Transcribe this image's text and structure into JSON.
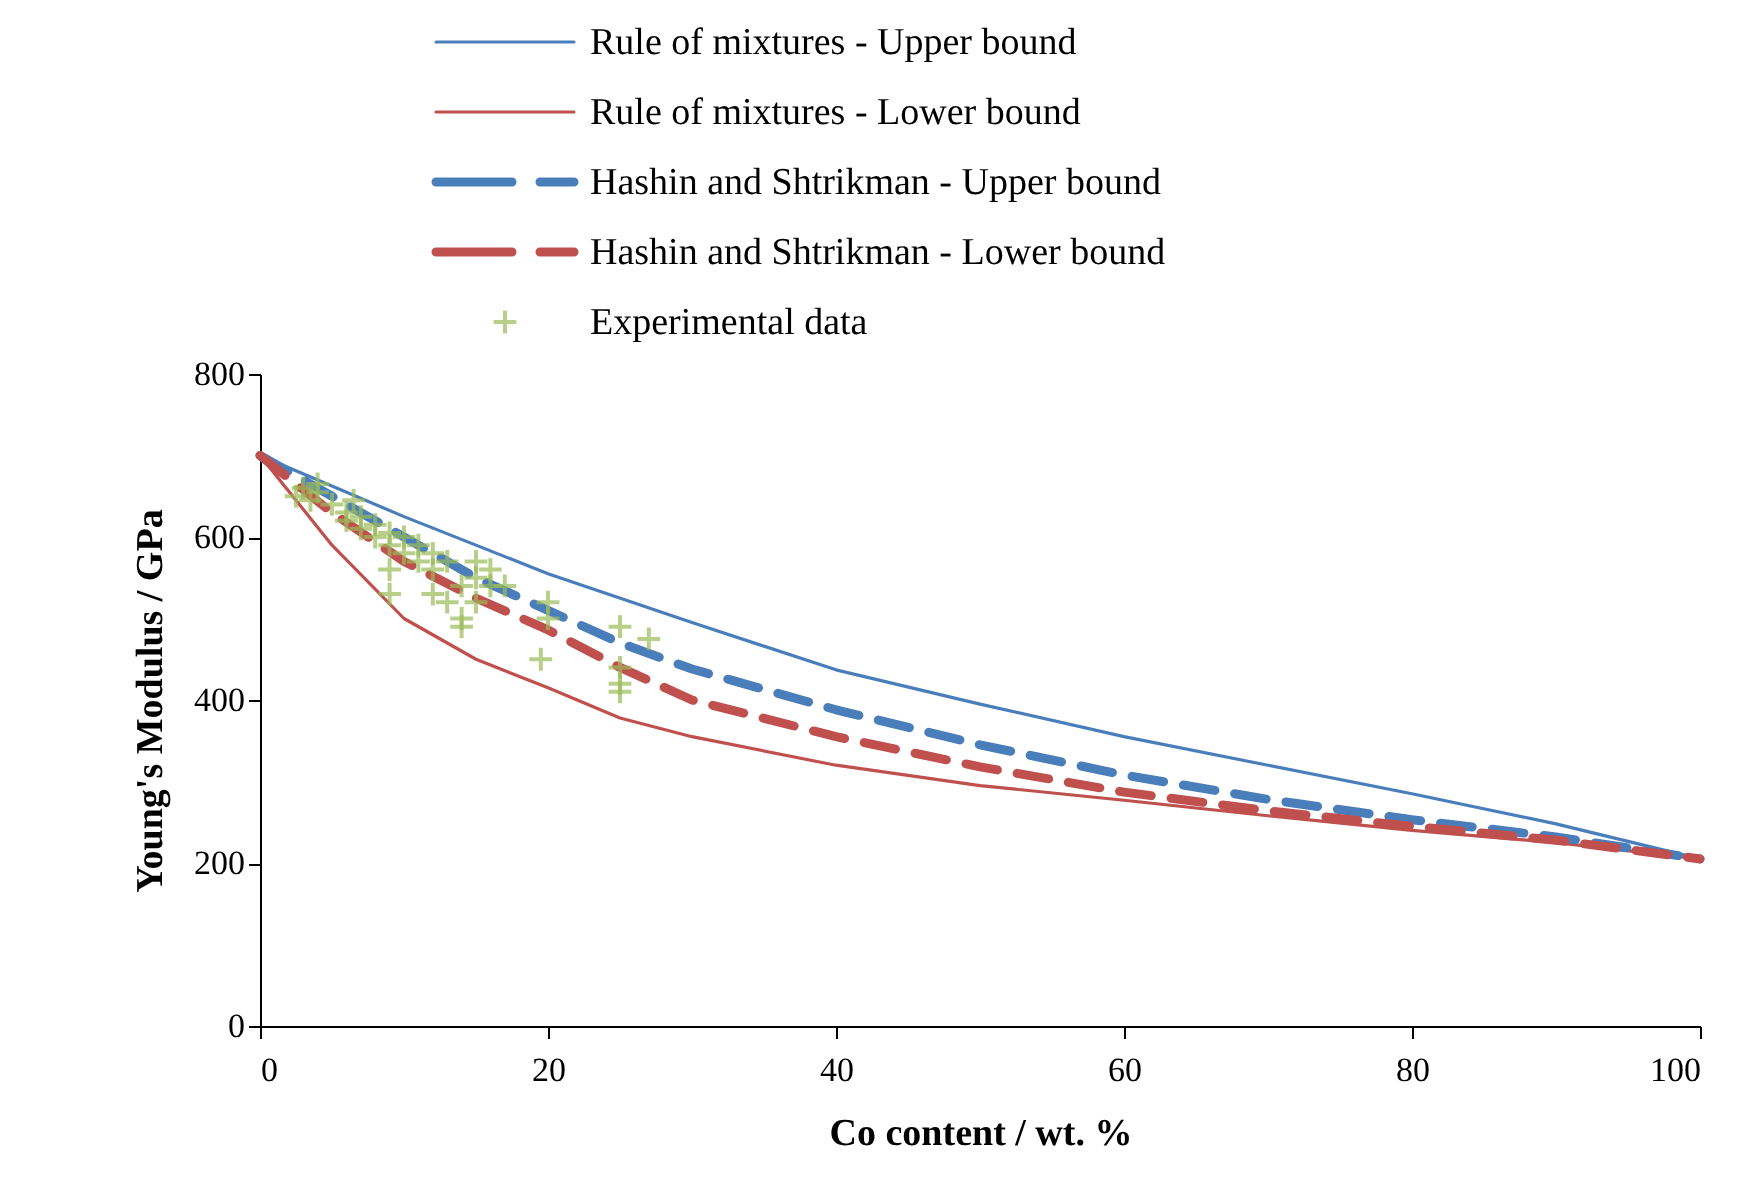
{
  "chart_data": {
    "type": "line",
    "xlabel": "Co content / wt. %",
    "ylabel": "Young's Modulus / GPa",
    "xlim": [
      0,
      100
    ],
    "ylim": [
      0,
      800
    ],
    "xticks": [
      0,
      20,
      40,
      60,
      80,
      100
    ],
    "yticks": [
      0,
      200,
      400,
      600,
      800
    ],
    "grid": false,
    "legend": "top",
    "marker": "none",
    "series": [
      {
        "name": "Rule of mixtures - Upper bound",
        "line_style": "solid",
        "color": "#4a7ebb",
        "x": [
          0,
          10,
          20,
          30,
          40,
          50,
          60,
          70,
          80,
          90,
          100
        ],
        "values": [
          700,
          625,
          555,
          495,
          437,
          395,
          355,
          320,
          285,
          248,
          205
        ]
      },
      {
        "name": "Rule of mixtures - Lower bound",
        "line_style": "solid",
        "color": "#c0504d",
        "x": [
          0,
          5,
          10,
          15,
          20,
          25,
          30,
          40,
          50,
          60,
          70,
          80,
          90,
          100
        ],
        "values": [
          700,
          590,
          500,
          450,
          415,
          378,
          355,
          320,
          295,
          277,
          258,
          240,
          225,
          205
        ]
      },
      {
        "name": "Hashin and Shtrikman - Upper bound",
        "line_style": "dashed",
        "color": "#4a7ebb",
        "x": [
          0,
          5,
          10,
          15,
          20,
          25,
          30,
          40,
          50,
          60,
          70,
          80,
          90,
          100
        ],
        "values": [
          700,
          650,
          600,
          550,
          510,
          470,
          438,
          388,
          345,
          308,
          278,
          253,
          232,
          205
        ]
      },
      {
        "name": "Hashin and Shtrikman - Lower bound",
        "line_style": "dashed",
        "color": "#c0504d",
        "x": [
          0,
          5,
          10,
          15,
          20,
          25,
          30,
          40,
          50,
          60,
          70,
          80,
          90,
          100
        ],
        "values": [
          700,
          630,
          570,
          525,
          486,
          440,
          400,
          355,
          318,
          287,
          264,
          245,
          228,
          205
        ]
      },
      {
        "name": "Experimental data",
        "type": "scatter",
        "marker": "cross",
        "color": "#9bbb59",
        "x": [
          2.5,
          3,
          3.5,
          4,
          4,
          5,
          6,
          6,
          6.5,
          7,
          7,
          8,
          8,
          9,
          9,
          9,
          9,
          10,
          10,
          11,
          11,
          12,
          12,
          12,
          13,
          13,
          14,
          14,
          14,
          15,
          15,
          15,
          16,
          16,
          17,
          19.5,
          20,
          20,
          25,
          25,
          25,
          25,
          27
        ],
        "values": [
          650,
          660,
          645,
          665,
          655,
          640,
          630,
          620,
          645,
          610,
          625,
          600,
          615,
          590,
          605,
          560,
          530,
          580,
          600,
          590,
          570,
          560,
          580,
          530,
          570,
          520,
          540,
          500,
          490,
          550,
          520,
          570,
          540,
          560,
          540,
          450,
          500,
          520,
          490,
          440,
          420,
          410,
          475
        ]
      }
    ]
  }
}
